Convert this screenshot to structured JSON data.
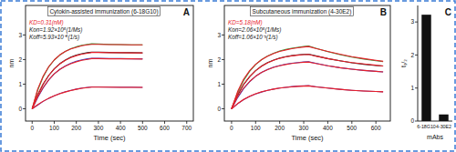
{
  "chart_data": [
    {
      "type": "line",
      "panel_label": "A",
      "title": "Cytokin-assisted immunization (6-18G10)",
      "annotations": [
        {
          "text": "KD=0.31(nM)",
          "color": "#e8202a"
        },
        {
          "text": "Kon=1.92×10⁵(1/Ms)",
          "color": "#111111"
        },
        {
          "text": "Koff=5.93×10⁻⁵(1/s)",
          "color": "#111111"
        }
      ],
      "x_label": "Time (sec)",
      "y_label": "nm",
      "x": [
        0,
        25,
        50,
        75,
        100,
        125,
        150,
        175,
        200,
        225,
        250,
        270,
        300,
        350,
        400,
        450,
        500
      ],
      "series": [
        {
          "color": "#3a9a3a",
          "values": [
            0,
            0.75,
            1.3,
            1.7,
            1.98,
            2.18,
            2.33,
            2.44,
            2.52,
            2.58,
            2.62,
            2.64,
            2.63,
            2.62,
            2.61,
            2.6,
            2.6
          ]
        },
        {
          "color": "#222222",
          "values": [
            0,
            0.55,
            1.0,
            1.35,
            1.62,
            1.83,
            1.98,
            2.1,
            2.18,
            2.24,
            2.28,
            2.3,
            2.3,
            2.29,
            2.28,
            2.28,
            2.27
          ]
        },
        {
          "color": "#3344cc",
          "values": [
            0,
            0.45,
            0.85,
            1.17,
            1.42,
            1.6,
            1.74,
            1.85,
            1.93,
            1.99,
            2.03,
            2.05,
            2.05,
            2.04,
            2.04,
            2.03,
            2.03
          ]
        },
        {
          "color": "#7a2a8a",
          "values": [
            0,
            0.15,
            0.3,
            0.42,
            0.53,
            0.62,
            0.69,
            0.75,
            0.8,
            0.84,
            0.87,
            0.89,
            0.89,
            0.88,
            0.88,
            0.88,
            0.87
          ]
        },
        {
          "color": "#e8202a",
          "values": [
            0,
            0.8,
            1.33,
            1.71,
            1.99,
            2.19,
            2.33,
            2.43,
            2.5,
            2.56,
            2.6,
            2.62,
            2.62,
            2.61,
            2.61,
            2.6,
            2.6
          ]
        },
        {
          "color": "#e8202a",
          "values": [
            0,
            0.58,
            1.02,
            1.36,
            1.62,
            1.82,
            1.97,
            2.08,
            2.16,
            2.22,
            2.26,
            2.29,
            2.29,
            2.28,
            2.28,
            2.27,
            2.27
          ]
        },
        {
          "color": "#e8202a",
          "values": [
            0,
            0.48,
            0.87,
            1.18,
            1.42,
            1.6,
            1.73,
            1.83,
            1.91,
            1.97,
            2.01,
            2.04,
            2.04,
            2.03,
            2.03,
            2.03,
            2.02
          ]
        },
        {
          "color": "#e8202a",
          "values": [
            0,
            0.17,
            0.31,
            0.43,
            0.53,
            0.61,
            0.68,
            0.74,
            0.79,
            0.83,
            0.86,
            0.88,
            0.88,
            0.88,
            0.87,
            0.87,
            0.87
          ]
        }
      ],
      "xlim": [
        -30,
        730
      ],
      "ylim": [
        -0.5,
        4.2
      ],
      "xticks": [
        0,
        100,
        200,
        300,
        400,
        500,
        600,
        700
      ],
      "yticks": [
        0,
        1,
        2,
        3
      ],
      "grid": false
    },
    {
      "type": "line",
      "panel_label": "B",
      "title": "Subcutaneous immunization (4-30E2)",
      "annotations": [
        {
          "text": "KD=5.18(nM)",
          "color": "#e8202a"
        },
        {
          "text": "Kon=2.06×10⁵(1/Ms)",
          "color": "#111111"
        },
        {
          "text": "Koff=1.06×10⁻³(1/s)",
          "color": "#111111"
        }
      ],
      "x_label": "Time (sec)",
      "y_label": "nm",
      "x": [
        0,
        25,
        50,
        75,
        100,
        125,
        150,
        175,
        200,
        225,
        250,
        275,
        300,
        320,
        350,
        400,
        450,
        500,
        550,
        600,
        630
      ],
      "series": [
        {
          "color": "#3a9a3a",
          "values": [
            0,
            0.65,
            1.15,
            1.52,
            1.8,
            2.0,
            2.15,
            2.26,
            2.35,
            2.41,
            2.46,
            2.5,
            2.53,
            2.55,
            2.46,
            2.32,
            2.2,
            2.1,
            2.02,
            1.95,
            1.92
          ]
        },
        {
          "color": "#222222",
          "values": [
            0,
            0.55,
            0.98,
            1.3,
            1.55,
            1.74,
            1.88,
            1.98,
            2.06,
            2.12,
            2.16,
            2.19,
            2.21,
            2.22,
            2.15,
            2.04,
            1.95,
            1.87,
            1.81,
            1.76,
            1.74
          ]
        },
        {
          "color": "#3344cc",
          "values": [
            0,
            0.45,
            0.82,
            1.1,
            1.32,
            1.48,
            1.6,
            1.69,
            1.76,
            1.81,
            1.85,
            1.88,
            1.9,
            1.91,
            1.85,
            1.75,
            1.67,
            1.61,
            1.56,
            1.52,
            1.5
          ]
        },
        {
          "color": "#7a2a8a",
          "values": [
            0,
            0.2,
            0.37,
            0.5,
            0.6,
            0.68,
            0.75,
            0.8,
            0.84,
            0.87,
            0.9,
            0.92,
            0.93,
            0.94,
            0.9,
            0.84,
            0.79,
            0.75,
            0.72,
            0.7,
            0.69
          ]
        },
        {
          "color": "#e8202a",
          "values": [
            0,
            0.7,
            1.2,
            1.55,
            1.81,
            2.0,
            2.14,
            2.25,
            2.33,
            2.39,
            2.44,
            2.48,
            2.51,
            2.53,
            2.45,
            2.33,
            2.22,
            2.12,
            2.04,
            1.97,
            1.93
          ]
        },
        {
          "color": "#e8202a",
          "values": [
            0,
            0.58,
            1.0,
            1.31,
            1.55,
            1.73,
            1.87,
            1.97,
            2.05,
            2.11,
            2.15,
            2.18,
            2.2,
            2.21,
            2.14,
            2.04,
            1.95,
            1.88,
            1.82,
            1.77,
            1.74
          ]
        },
        {
          "color": "#e8202a",
          "values": [
            0,
            0.48,
            0.84,
            1.11,
            1.32,
            1.48,
            1.59,
            1.68,
            1.75,
            1.8,
            1.84,
            1.87,
            1.89,
            1.9,
            1.84,
            1.75,
            1.67,
            1.61,
            1.56,
            1.52,
            1.5
          ]
        },
        {
          "color": "#e8202a",
          "values": [
            0,
            0.21,
            0.38,
            0.51,
            0.61,
            0.69,
            0.75,
            0.8,
            0.84,
            0.87,
            0.89,
            0.91,
            0.92,
            0.93,
            0.89,
            0.84,
            0.79,
            0.75,
            0.72,
            0.7,
            0.69
          ]
        }
      ],
      "xlim": [
        -30,
        660
      ],
      "ylim": [
        -0.5,
        4.2
      ],
      "xticks": [
        0,
        100,
        200,
        300,
        400,
        500,
        600
      ],
      "yticks": [
        0,
        1,
        2,
        3
      ],
      "grid": false
    },
    {
      "type": "bar",
      "panel_label": "C",
      "x_label": "mAbs",
      "y_label": "t₁/₂",
      "categories": [
        "6-18G10",
        "4-30E2"
      ],
      "values": [
        3.22,
        0.2
      ],
      "color": "#111111",
      "ylim": [
        0,
        3.5
      ],
      "yticks": [
        0,
        1,
        2,
        3
      ],
      "grid": false
    }
  ]
}
